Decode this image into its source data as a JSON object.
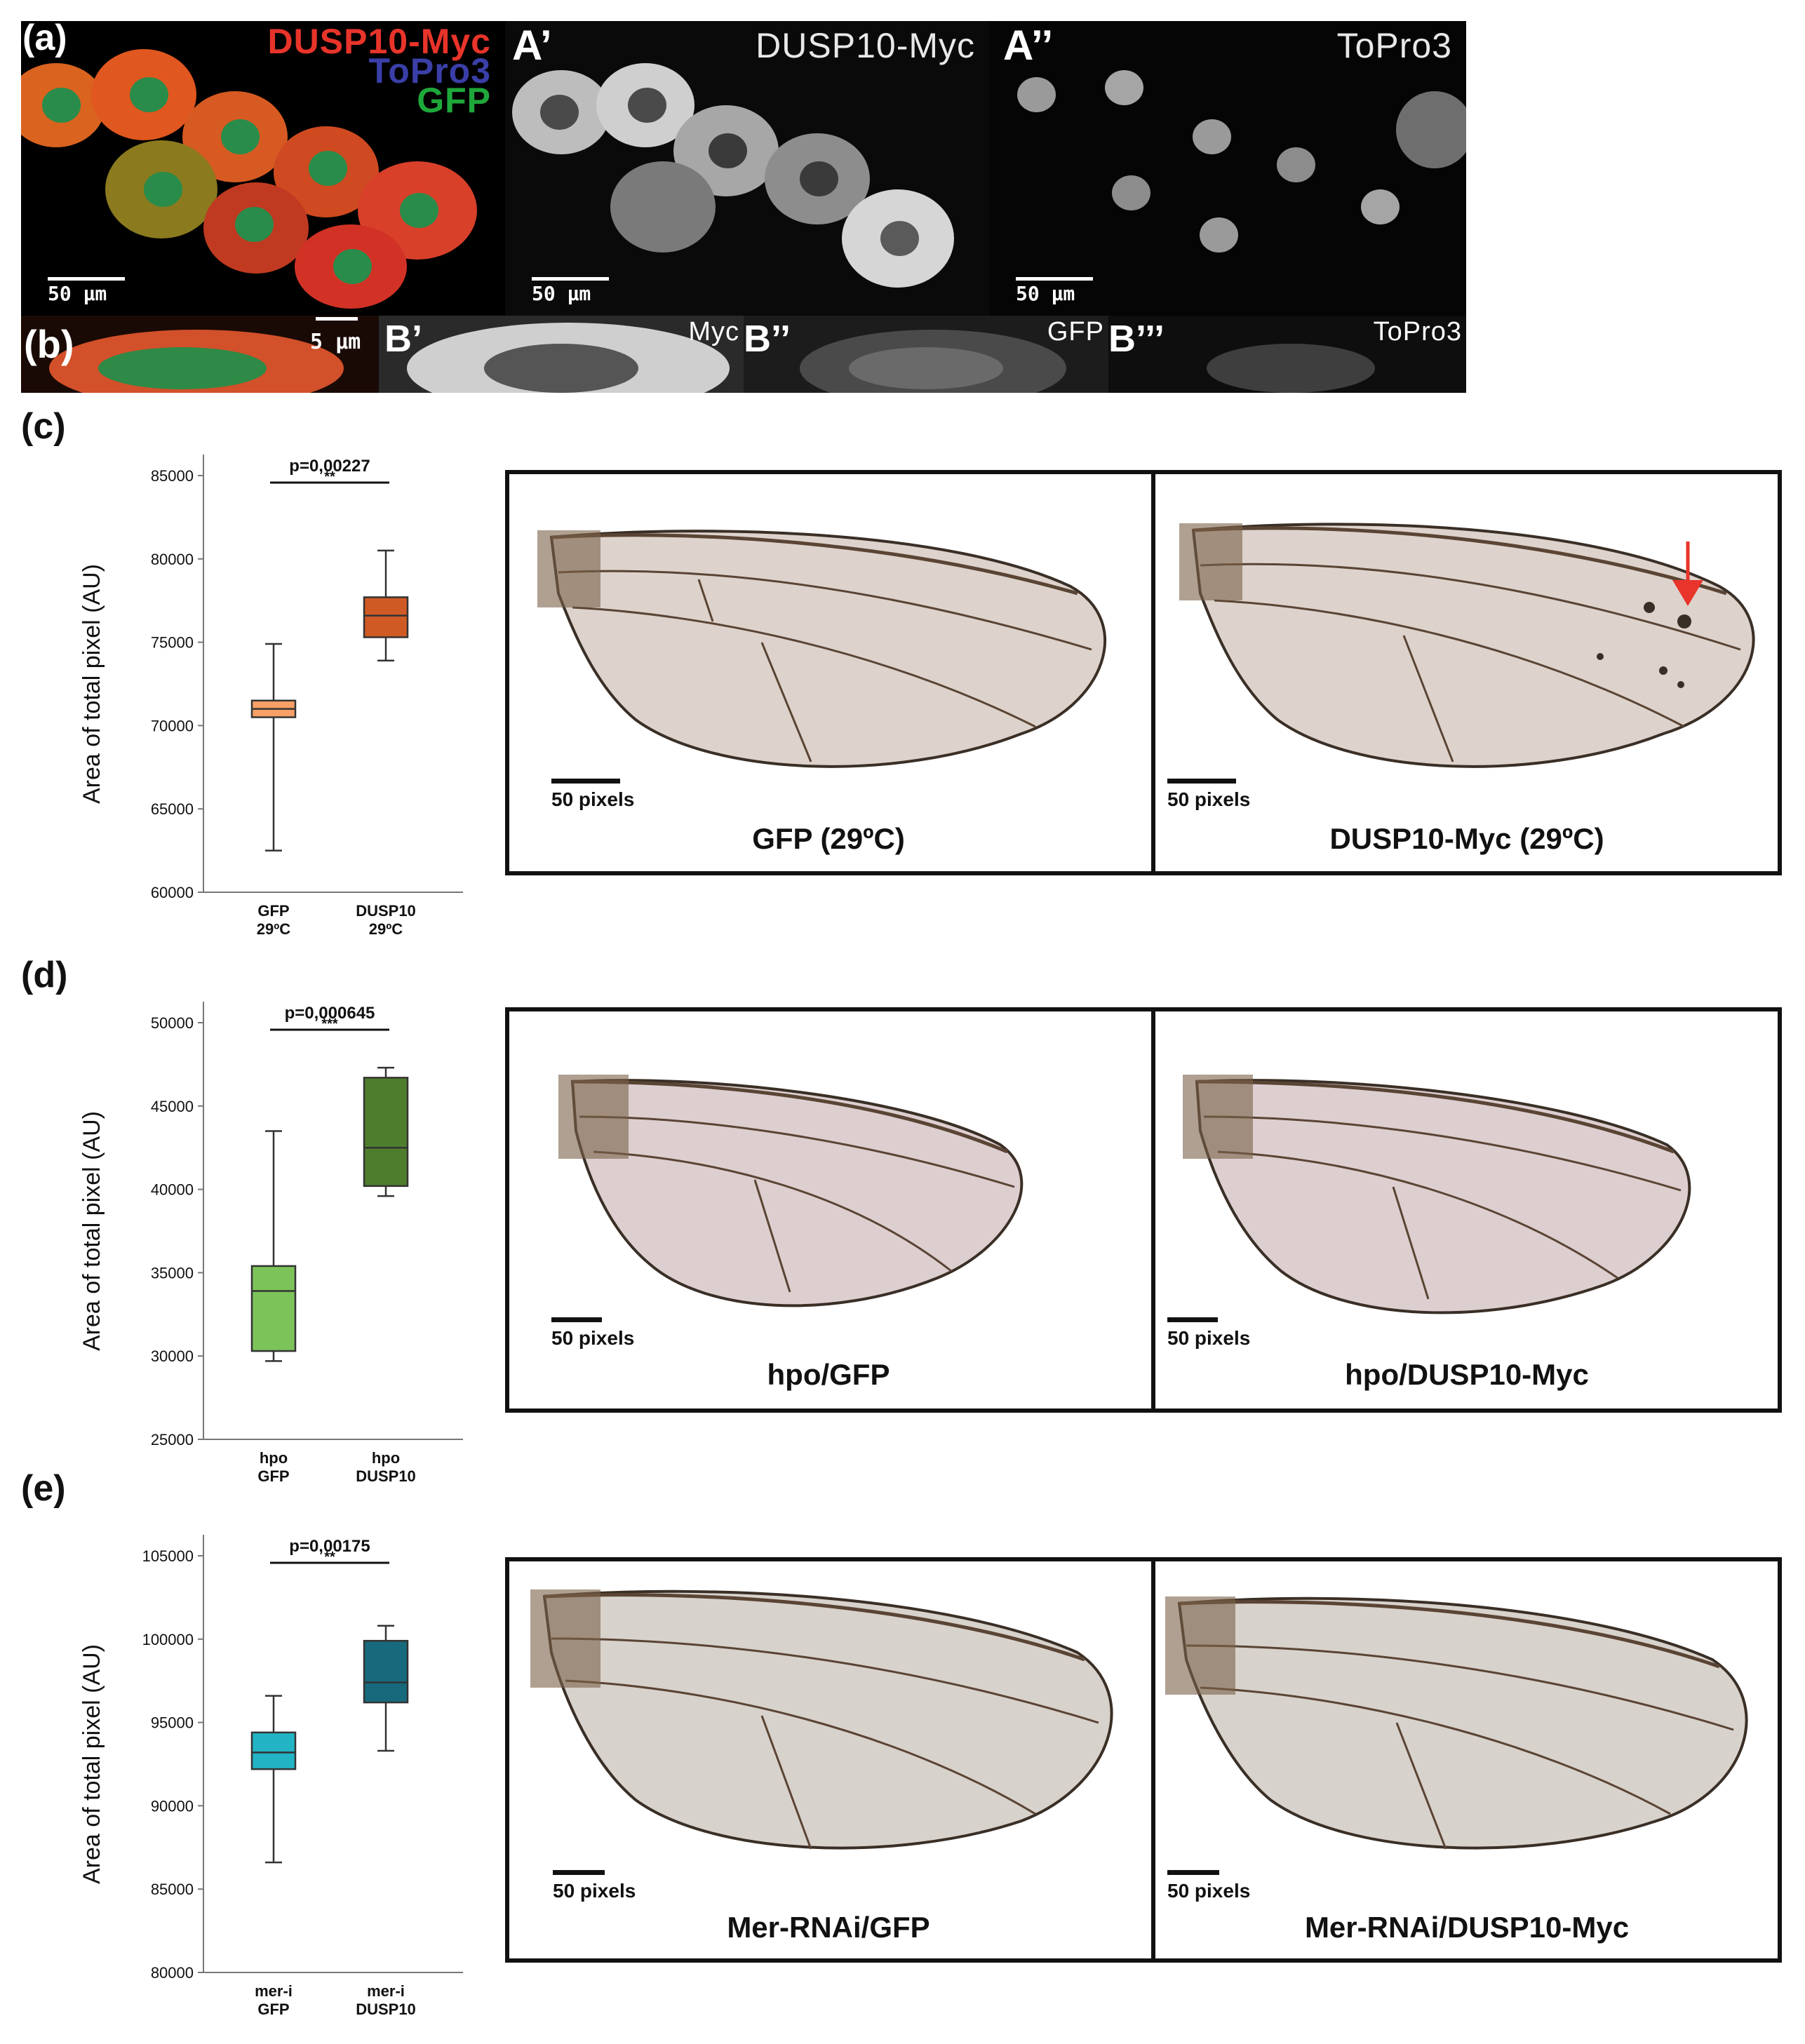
{
  "panel_a": {
    "letter": "(a)",
    "merged_labels": [
      "DUSP10-Myc",
      "ToPro3",
      "GFP"
    ],
    "merged_colors": [
      "#e8342a",
      "#3a3fa8",
      "#1fa83a"
    ],
    "prime_label": "A’",
    "prime_channel": "DUSP10-Myc",
    "dprime_label": "A’’",
    "dprime_channel": "ToPro3",
    "scale_text": "50 μm"
  },
  "panel_b": {
    "letter": "(b)",
    "scale_text": "5 μm",
    "b1_label": "B’",
    "b1_channel": "Myc",
    "b2_label": "B’’",
    "b2_channel": "GFP",
    "b3_label": "B’’’",
    "b3_channel": "ToPro3"
  },
  "panel_c": {
    "letter": "(c)",
    "wing_scale": "50 pixels",
    "left_caption": "GFP (29ºC)",
    "right_caption": "DUSP10-Myc (29ºC)",
    "arrow_color": "#e8342a"
  },
  "panel_d": {
    "letter": "(d)",
    "wing_scale": "50 pixels",
    "left_caption": "hpo/GFP",
    "right_caption": "hpo/DUSP10-Myc"
  },
  "panel_e": {
    "letter": "(e)",
    "wing_scale": "50 pixels",
    "left_caption": "Mer-RNAi/GFP",
    "right_caption": "Mer-RNAi/DUSP10-Myc"
  },
  "chart_data": [
    {
      "type": "boxplot",
      "ylabel": "Area of total pixel (AU)",
      "ylim": [
        60000,
        85000
      ],
      "yticks": [
        60000,
        65000,
        70000,
        75000,
        80000,
        85000
      ],
      "annotation": "p=0,00227",
      "stars": "**",
      "boxes": [
        {
          "label": [
            "GFP",
            "29ºC"
          ],
          "min": 62500,
          "q1": 70500,
          "median": 71000,
          "q3": 71500,
          "max": 74900,
          "color": "#f8a066"
        },
        {
          "label": [
            "DUSP10",
            "29ºC"
          ],
          "min": 73900,
          "q1": 75300,
          "median": 76600,
          "q3": 77700,
          "max": 80500,
          "color": "#cf5a24"
        }
      ]
    },
    {
      "type": "boxplot",
      "ylabel": "Area of total pixel (AU)",
      "ylim": [
        25000,
        50000
      ],
      "yticks": [
        25000,
        30000,
        35000,
        40000,
        45000,
        50000
      ],
      "annotation": "p=0,000645",
      "stars": "***",
      "boxes": [
        {
          "label": [
            "hpo",
            "GFP"
          ],
          "min": 29700,
          "q1": 30300,
          "median": 33900,
          "q3": 35400,
          "max": 43500,
          "color": "#7cc35a"
        },
        {
          "label": [
            "hpo",
            "DUSP10"
          ],
          "min": 39600,
          "q1": 40200,
          "median": 42500,
          "q3": 46700,
          "max": 47300,
          "color": "#4f7d2e"
        }
      ]
    },
    {
      "type": "boxplot",
      "ylabel": "Area of total pixel (AU)",
      "ylim": [
        80000,
        105000
      ],
      "yticks": [
        80000,
        85000,
        90000,
        95000,
        100000,
        105000
      ],
      "annotation": "p=0,00175",
      "stars": "**",
      "boxes": [
        {
          "label": [
            "mer-i",
            "GFP"
          ],
          "min": 86600,
          "q1": 92200,
          "median": 93200,
          "q3": 94400,
          "max": 96600,
          "color": "#22b4c4"
        },
        {
          "label": [
            "mer-i",
            "DUSP10"
          ],
          "min": 93300,
          "q1": 96200,
          "median": 97400,
          "q3": 99900,
          "max": 100800,
          "color": "#176a7c"
        }
      ]
    }
  ]
}
